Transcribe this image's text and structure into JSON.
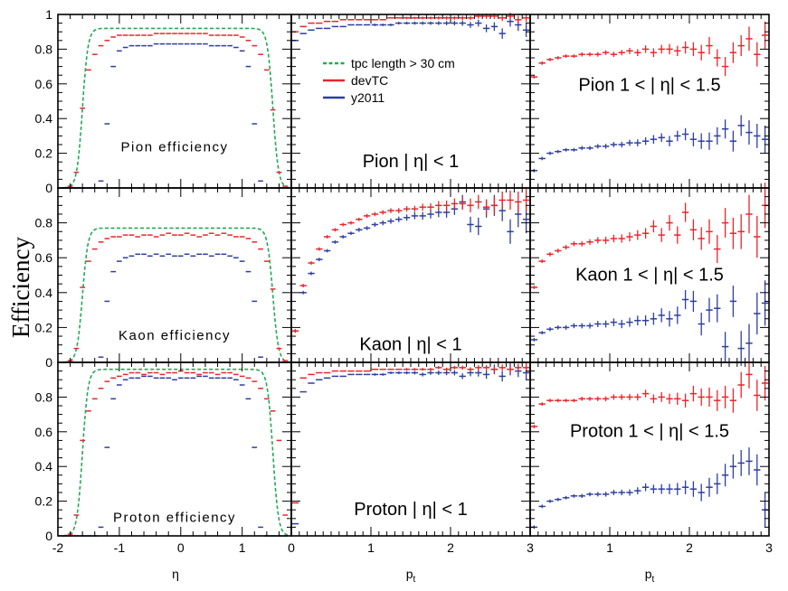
{
  "chart_data": {
    "type": "scatter",
    "ylabel": "Efficiency",
    "colors": {
      "tpc": "#22aa55",
      "devTC": "#e8262c",
      "y2011": "#2e3f9e",
      "frame": "#000000"
    },
    "legend": {
      "placement": "top-left of top-middle panel",
      "entries": [
        {
          "label": "tpc length > 30 cm",
          "style": "dashed",
          "color": "#22aa55"
        },
        {
          "label": "devTC",
          "style": "solid",
          "color": "#e8262c"
        },
        {
          "label": "y2011",
          "style": "solid",
          "color": "#2e3f9e"
        }
      ]
    },
    "y_ticks": [
      "0",
      "0.2",
      "0.4",
      "0.6",
      "0.8",
      "1"
    ],
    "bottom_xlabels": [
      "η",
      "pt",
      "pt"
    ],
    "x_ticks_eta": [
      "-2",
      "-1",
      "0",
      "1"
    ],
    "x_ticks_pt": [
      "0",
      "1",
      "2",
      "3"
    ],
    "eta_x": [
      -1.9,
      -1.8,
      -1.7,
      -1.6,
      -1.5,
      -1.4,
      -1.3,
      -1.2,
      -1.1,
      -1.0,
      -0.9,
      -0.8,
      -0.7,
      -0.6,
      -0.5,
      -0.4,
      -0.3,
      -0.2,
      -0.1,
      0.0,
      0.1,
      0.2,
      0.3,
      0.4,
      0.5,
      0.6,
      0.7,
      0.8,
      0.9,
      1.0,
      1.1,
      1.2,
      1.3,
      1.4,
      1.5,
      1.6,
      1.7
    ],
    "pt_x": [
      0.05,
      0.15,
      0.25,
      0.35,
      0.45,
      0.55,
      0.65,
      0.75,
      0.85,
      0.95,
      1.05,
      1.15,
      1.25,
      1.35,
      1.45,
      1.55,
      1.65,
      1.75,
      1.85,
      1.95,
      2.05,
      2.15,
      2.25,
      2.35,
      2.45,
      2.55,
      2.65,
      2.75,
      2.85,
      2.95
    ],
    "panels": [
      {
        "label": "Pion efficiency",
        "xaxis": "eta",
        "xlim": [
          -2,
          1.8
        ],
        "ylim": [
          0,
          1
        ],
        "tpc": {
          "plateau": 0.92,
          "edge": 1.55
        },
        "devTC": [
          0.0,
          0.01,
          0.09,
          0.46,
          0.68,
          0.77,
          0.82,
          0.85,
          0.87,
          0.88,
          0.88,
          0.88,
          0.88,
          0.88,
          0.88,
          0.89,
          0.89,
          0.89,
          0.89,
          0.89,
          0.89,
          0.89,
          0.89,
          0.89,
          0.88,
          0.88,
          0.88,
          0.88,
          0.88,
          0.87,
          0.85,
          0.82,
          0.77,
          0.68,
          0.45,
          0.09,
          0.01
        ],
        "y2011": [
          0.0,
          0.0,
          0.0,
          0.0,
          0.0,
          0.0,
          0.04,
          0.37,
          0.7,
          0.79,
          0.81,
          0.82,
          0.82,
          0.82,
          0.82,
          0.83,
          0.83,
          0.83,
          0.83,
          0.83,
          0.83,
          0.83,
          0.83,
          0.83,
          0.82,
          0.82,
          0.82,
          0.82,
          0.81,
          0.79,
          0.7,
          0.37,
          0.04,
          0.0,
          0.0,
          0.0,
          0.0
        ]
      },
      {
        "label": "Pion | η| < 1",
        "xaxis": "pt",
        "xlim": [
          0,
          3
        ],
        "ylim": [
          0,
          1
        ],
        "devTC": [
          0.9,
          0.93,
          0.95,
          0.95,
          0.96,
          0.96,
          0.97,
          0.97,
          0.97,
          0.97,
          0.97,
          0.97,
          0.98,
          0.98,
          0.98,
          0.98,
          0.98,
          0.98,
          0.98,
          0.98,
          0.98,
          0.98,
          0.98,
          0.99,
          0.99,
          0.99,
          0.98,
          0.99,
          0.97,
          0.98
        ],
        "y2011": [
          0.85,
          0.89,
          0.91,
          0.92,
          0.92,
          0.93,
          0.93,
          0.94,
          0.94,
          0.94,
          0.94,
          0.94,
          0.94,
          0.95,
          0.95,
          0.95,
          0.95,
          0.95,
          0.95,
          0.95,
          0.95,
          0.95,
          0.94,
          0.95,
          0.92,
          0.93,
          0.89,
          0.96,
          0.94,
          0.91
        ],
        "devTC_err": [
          0.005,
          0.005,
          0.005,
          0.005,
          0.005,
          0.005,
          0.005,
          0.005,
          0.005,
          0.005,
          0.006,
          0.006,
          0.006,
          0.006,
          0.007,
          0.007,
          0.008,
          0.008,
          0.009,
          0.01,
          0.01,
          0.012,
          0.012,
          0.014,
          0.015,
          0.016,
          0.018,
          0.02,
          0.022,
          0.025
        ],
        "y2011_err": [
          0.006,
          0.006,
          0.006,
          0.006,
          0.006,
          0.006,
          0.006,
          0.006,
          0.006,
          0.006,
          0.007,
          0.007,
          0.007,
          0.008,
          0.008,
          0.009,
          0.01,
          0.01,
          0.011,
          0.012,
          0.013,
          0.015,
          0.017,
          0.02,
          0.022,
          0.025,
          0.03,
          0.03,
          0.035,
          0.04
        ]
      },
      {
        "label": "Pion 1 < | η| < 1.5",
        "xaxis": "pt",
        "xlim": [
          0,
          3
        ],
        "ylim": [
          0,
          1
        ],
        "devTC": [
          0.64,
          0.72,
          0.74,
          0.75,
          0.76,
          0.76,
          0.77,
          0.77,
          0.77,
          0.78,
          0.77,
          0.78,
          0.79,
          0.78,
          0.8,
          0.78,
          0.8,
          0.8,
          0.79,
          0.81,
          0.8,
          0.78,
          0.82,
          0.75,
          0.7,
          0.78,
          0.82,
          0.86,
          0.77,
          0.88
        ],
        "y2011": [
          0.1,
          0.17,
          0.2,
          0.21,
          0.22,
          0.22,
          0.23,
          0.23,
          0.24,
          0.24,
          0.25,
          0.25,
          0.26,
          0.26,
          0.27,
          0.28,
          0.29,
          0.27,
          0.3,
          0.31,
          0.28,
          0.27,
          0.27,
          0.3,
          0.34,
          0.27,
          0.36,
          0.32,
          0.3,
          0.28
        ],
        "devTC_err": [
          0.01,
          0.01,
          0.01,
          0.01,
          0.01,
          0.01,
          0.012,
          0.012,
          0.013,
          0.014,
          0.015,
          0.016,
          0.018,
          0.02,
          0.022,
          0.025,
          0.025,
          0.03,
          0.03,
          0.035,
          0.04,
          0.045,
          0.05,
          0.05,
          0.055,
          0.06,
          0.06,
          0.07,
          0.07,
          0.08
        ],
        "y2011_err": [
          0.01,
          0.01,
          0.01,
          0.01,
          0.01,
          0.01,
          0.012,
          0.012,
          0.013,
          0.014,
          0.015,
          0.016,
          0.018,
          0.02,
          0.022,
          0.025,
          0.025,
          0.03,
          0.03,
          0.035,
          0.04,
          0.045,
          0.05,
          0.05,
          0.055,
          0.06,
          0.06,
          0.07,
          0.07,
          0.08
        ]
      },
      {
        "label": "Kaon efficiency",
        "xaxis": "eta",
        "xlim": [
          -2,
          1.8
        ],
        "ylim": [
          0,
          1
        ],
        "tpc": {
          "plateau": 0.77,
          "edge": 1.55
        },
        "devTC": [
          0.0,
          0.01,
          0.08,
          0.43,
          0.58,
          0.65,
          0.69,
          0.71,
          0.72,
          0.72,
          0.73,
          0.73,
          0.72,
          0.73,
          0.73,
          0.72,
          0.73,
          0.74,
          0.73,
          0.73,
          0.74,
          0.73,
          0.72,
          0.73,
          0.74,
          0.73,
          0.74,
          0.73,
          0.72,
          0.72,
          0.71,
          0.69,
          0.65,
          0.58,
          0.42,
          0.08,
          0.01
        ],
        "y2011": [
          0.0,
          0.0,
          0.0,
          0.0,
          0.0,
          0.0,
          0.03,
          0.35,
          0.52,
          0.58,
          0.6,
          0.61,
          0.62,
          0.62,
          0.61,
          0.62,
          0.61,
          0.62,
          0.61,
          0.61,
          0.62,
          0.61,
          0.62,
          0.62,
          0.61,
          0.62,
          0.62,
          0.61,
          0.6,
          0.58,
          0.52,
          0.35,
          0.03,
          0.0,
          0.0,
          0.0,
          0.0
        ]
      },
      {
        "label": "Kaon | η| < 1",
        "xaxis": "pt",
        "xlim": [
          0,
          3
        ],
        "ylim": [
          0,
          1
        ],
        "devTC": [
          0.18,
          0.44,
          0.57,
          0.65,
          0.72,
          0.76,
          0.79,
          0.8,
          0.82,
          0.84,
          0.85,
          0.86,
          0.87,
          0.87,
          0.88,
          0.88,
          0.89,
          0.89,
          0.9,
          0.9,
          0.91,
          0.91,
          0.9,
          0.92,
          0.89,
          0.9,
          0.93,
          0.93,
          0.92,
          0.93
        ],
        "y2011": [
          0.18,
          0.4,
          0.51,
          0.59,
          0.64,
          0.69,
          0.72,
          0.74,
          0.76,
          0.77,
          0.79,
          0.8,
          0.81,
          0.82,
          0.83,
          0.84,
          0.84,
          0.85,
          0.86,
          0.86,
          0.88,
          0.92,
          0.79,
          0.78,
          0.88,
          0.9,
          0.87,
          0.75,
          0.85,
          0.82
        ],
        "devTC_err": [
          0.01,
          0.01,
          0.01,
          0.01,
          0.01,
          0.01,
          0.01,
          0.01,
          0.01,
          0.012,
          0.012,
          0.013,
          0.014,
          0.015,
          0.016,
          0.018,
          0.02,
          0.022,
          0.025,
          0.028,
          0.03,
          0.035,
          0.04,
          0.04,
          0.045,
          0.05,
          0.05,
          0.055,
          0.06,
          0.065
        ],
        "y2011_err": [
          0.01,
          0.01,
          0.01,
          0.01,
          0.01,
          0.01,
          0.01,
          0.01,
          0.012,
          0.012,
          0.013,
          0.014,
          0.015,
          0.016,
          0.018,
          0.02,
          0.022,
          0.025,
          0.028,
          0.03,
          0.035,
          0.04,
          0.045,
          0.05,
          0.05,
          0.06,
          0.06,
          0.07,
          0.075,
          0.08
        ]
      },
      {
        "label": "Kaon 1 < | η| < 1.5",
        "xaxis": "pt",
        "xlim": [
          0,
          3
        ],
        "ylim": [
          0,
          1
        ],
        "devTC": [
          0.43,
          0.58,
          0.62,
          0.64,
          0.66,
          0.68,
          0.68,
          0.69,
          0.7,
          0.7,
          0.71,
          0.71,
          0.72,
          0.73,
          0.74,
          0.78,
          0.73,
          0.8,
          0.73,
          0.86,
          0.76,
          0.71,
          0.75,
          0.65,
          0.8,
          0.74,
          0.75,
          0.85,
          0.72,
          0.9
        ],
        "y2011": [
          0.13,
          0.17,
          0.19,
          0.2,
          0.2,
          0.21,
          0.21,
          0.21,
          0.22,
          0.22,
          0.23,
          0.22,
          0.23,
          0.24,
          0.24,
          0.25,
          0.27,
          0.25,
          0.27,
          0.36,
          0.35,
          0.22,
          0.3,
          0.31,
          0.09,
          0.35,
          0.08,
          0.11,
          0.28,
          0.34
        ],
        "devTC_err": [
          0.01,
          0.01,
          0.012,
          0.012,
          0.013,
          0.014,
          0.015,
          0.016,
          0.018,
          0.02,
          0.022,
          0.024,
          0.026,
          0.028,
          0.03,
          0.035,
          0.04,
          0.045,
          0.05,
          0.055,
          0.06,
          0.065,
          0.07,
          0.08,
          0.085,
          0.09,
          0.1,
          0.11,
          0.12,
          0.13
        ],
        "y2011_err": [
          0.01,
          0.01,
          0.012,
          0.012,
          0.013,
          0.014,
          0.015,
          0.016,
          0.018,
          0.02,
          0.022,
          0.024,
          0.026,
          0.028,
          0.03,
          0.035,
          0.04,
          0.045,
          0.05,
          0.055,
          0.06,
          0.065,
          0.07,
          0.08,
          0.085,
          0.09,
          0.1,
          0.11,
          0.12,
          0.13
        ]
      },
      {
        "label": "Proton efficiency",
        "xaxis": "eta",
        "xlim": [
          -2,
          1.8
        ],
        "ylim": [
          0,
          1
        ],
        "tpc": {
          "plateau": 0.96,
          "edge": 1.55
        },
        "devTC": [
          0.0,
          0.01,
          0.12,
          0.55,
          0.72,
          0.79,
          0.85,
          0.89,
          0.91,
          0.92,
          0.93,
          0.94,
          0.94,
          0.93,
          0.94,
          0.94,
          0.93,
          0.94,
          0.94,
          0.95,
          0.94,
          0.94,
          0.93,
          0.94,
          0.94,
          0.93,
          0.94,
          0.94,
          0.93,
          0.92,
          0.91,
          0.89,
          0.85,
          0.79,
          0.72,
          0.55,
          0.12
        ],
        "y2011": [
          0.0,
          0.0,
          0.0,
          0.0,
          0.0,
          0.0,
          0.05,
          0.51,
          0.79,
          0.87,
          0.9,
          0.91,
          0.91,
          0.92,
          0.92,
          0.91,
          0.91,
          0.91,
          0.9,
          0.91,
          0.91,
          0.91,
          0.92,
          0.92,
          0.91,
          0.91,
          0.91,
          0.91,
          0.9,
          0.87,
          0.79,
          0.51,
          0.05,
          0.0,
          0.0,
          0.0,
          0.0
        ]
      },
      {
        "label": "Proton | η| < 1",
        "xaxis": "pt",
        "xlim": [
          0,
          3
        ],
        "ylim": [
          0,
          1
        ],
        "devTC": [
          0.19,
          0.91,
          0.93,
          0.94,
          0.94,
          0.95,
          0.95,
          0.95,
          0.95,
          0.95,
          0.96,
          0.96,
          0.96,
          0.96,
          0.96,
          0.96,
          0.96,
          0.96,
          0.97,
          0.96,
          0.97,
          0.97,
          0.96,
          0.97,
          0.97,
          0.96,
          0.97,
          0.96,
          0.97,
          0.97
        ],
        "y2011": [
          0.07,
          0.83,
          0.88,
          0.9,
          0.91,
          0.92,
          0.92,
          0.93,
          0.93,
          0.93,
          0.93,
          0.93,
          0.94,
          0.94,
          0.94,
          0.94,
          0.93,
          0.94,
          0.94,
          0.94,
          0.94,
          0.92,
          0.94,
          0.94,
          0.93,
          0.96,
          0.92,
          0.96,
          0.95,
          0.94
        ],
        "devTC_err": [
          0.005,
          0.005,
          0.005,
          0.005,
          0.005,
          0.005,
          0.005,
          0.005,
          0.005,
          0.005,
          0.006,
          0.006,
          0.006,
          0.006,
          0.007,
          0.007,
          0.008,
          0.008,
          0.009,
          0.01,
          0.01,
          0.012,
          0.012,
          0.014,
          0.015,
          0.016,
          0.018,
          0.02,
          0.022,
          0.025
        ],
        "y2011_err": [
          0.006,
          0.006,
          0.006,
          0.006,
          0.006,
          0.006,
          0.006,
          0.006,
          0.006,
          0.006,
          0.007,
          0.007,
          0.007,
          0.008,
          0.009,
          0.01,
          0.011,
          0.012,
          0.013,
          0.014,
          0.015,
          0.017,
          0.02,
          0.022,
          0.025,
          0.028,
          0.03,
          0.035,
          0.035,
          0.04
        ]
      },
      {
        "label": "Proton 1 < | η| < 1.5",
        "xaxis": "pt",
        "xlim": [
          0,
          3
        ],
        "ylim": [
          0,
          1
        ],
        "devTC": [
          0.63,
          0.76,
          0.78,
          0.78,
          0.78,
          0.78,
          0.79,
          0.79,
          0.79,
          0.79,
          0.8,
          0.8,
          0.8,
          0.8,
          0.82,
          0.79,
          0.8,
          0.79,
          0.79,
          0.78,
          0.82,
          0.8,
          0.8,
          0.78,
          0.8,
          0.78,
          0.87,
          0.93,
          0.81,
          0.88
        ],
        "y2011": [
          0.05,
          0.17,
          0.2,
          0.21,
          0.22,
          0.23,
          0.23,
          0.24,
          0.24,
          0.24,
          0.25,
          0.25,
          0.25,
          0.26,
          0.28,
          0.27,
          0.27,
          0.27,
          0.27,
          0.28,
          0.27,
          0.25,
          0.28,
          0.3,
          0.35,
          0.4,
          0.42,
          0.43,
          0.38,
          0.15
        ],
        "devTC_err": [
          0.01,
          0.01,
          0.01,
          0.01,
          0.01,
          0.01,
          0.012,
          0.012,
          0.013,
          0.014,
          0.015,
          0.016,
          0.018,
          0.02,
          0.022,
          0.025,
          0.028,
          0.03,
          0.035,
          0.04,
          0.045,
          0.05,
          0.055,
          0.06,
          0.065,
          0.07,
          0.075,
          0.08,
          0.09,
          0.1
        ],
        "y2011_err": [
          0.01,
          0.01,
          0.01,
          0.01,
          0.01,
          0.01,
          0.012,
          0.012,
          0.013,
          0.014,
          0.015,
          0.016,
          0.018,
          0.02,
          0.022,
          0.025,
          0.028,
          0.03,
          0.035,
          0.04,
          0.045,
          0.05,
          0.055,
          0.06,
          0.065,
          0.07,
          0.075,
          0.08,
          0.09,
          0.1
        ]
      }
    ]
  }
}
